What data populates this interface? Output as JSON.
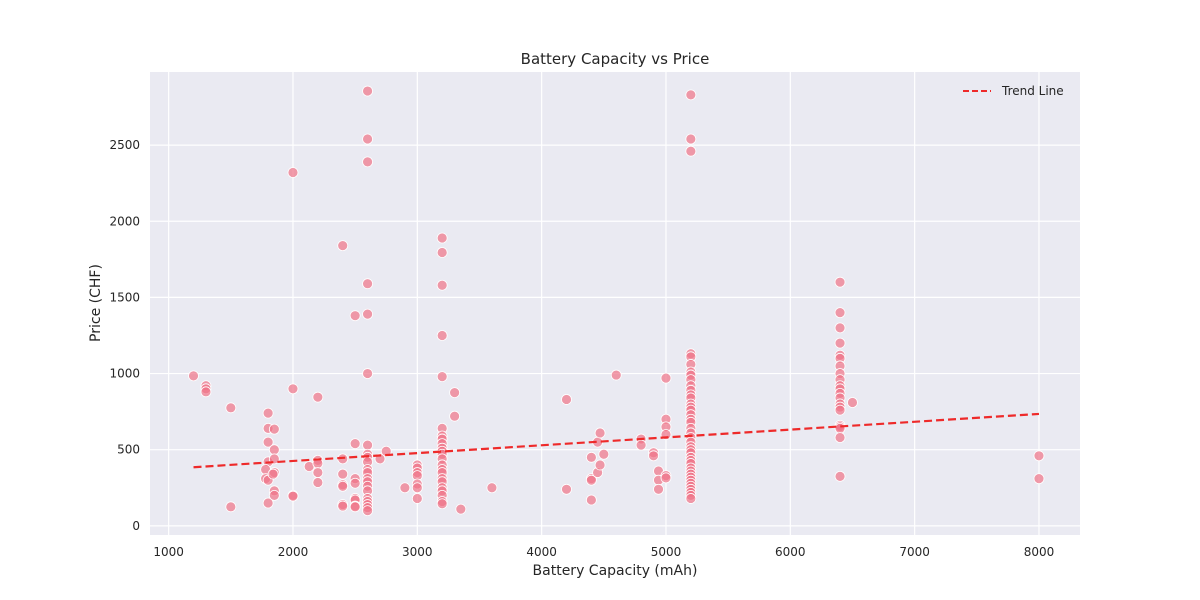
{
  "chart_data": {
    "type": "scatter",
    "title": "Battery Capacity vs Price",
    "xlabel": "Battery Capacity (mAh)",
    "ylabel": "Price (CHF)",
    "xlim": [
      850,
      8330
    ],
    "ylim": [
      -60,
      2980
    ],
    "xticks": [
      1000,
      2000,
      3000,
      4000,
      5000,
      6000,
      7000,
      8000
    ],
    "yticks": [
      0,
      500,
      1000,
      1500,
      2000,
      2500
    ],
    "grid": true,
    "legend": {
      "position": "top-right",
      "entries": [
        "Trend Line"
      ]
    },
    "colors": {
      "background": "#eaeaf2",
      "grid": "#ffffff",
      "points": "#f07487",
      "point_edge": "#ffffff",
      "trend": "#ee2a2a"
    },
    "series": [
      {
        "type": "scatter",
        "points": [
          [
            1200,
            985
          ],
          [
            1300,
            920
          ],
          [
            1300,
            900
          ],
          [
            1300,
            880
          ],
          [
            1500,
            775
          ],
          [
            1500,
            125
          ],
          [
            1800,
            740
          ],
          [
            1800,
            640
          ],
          [
            1800,
            550
          ],
          [
            1800,
            420
          ],
          [
            1780,
            370
          ],
          [
            1780,
            310
          ],
          [
            1800,
            300
          ],
          [
            1800,
            150
          ],
          [
            1850,
            635
          ],
          [
            1850,
            500
          ],
          [
            1850,
            440
          ],
          [
            1850,
            350
          ],
          [
            1840,
            340
          ],
          [
            1850,
            230
          ],
          [
            1850,
            200
          ],
          [
            2000,
            2320
          ],
          [
            2000,
            900
          ],
          [
            2000,
            200
          ],
          [
            2000,
            195
          ],
          [
            2130,
            390
          ],
          [
            2200,
            845
          ],
          [
            2200,
            430
          ],
          [
            2200,
            410
          ],
          [
            2200,
            350
          ],
          [
            2200,
            285
          ],
          [
            2400,
            1840
          ],
          [
            2400,
            440
          ],
          [
            2400,
            340
          ],
          [
            2400,
            270
          ],
          [
            2400,
            260
          ],
          [
            2400,
            140
          ],
          [
            2400,
            130
          ],
          [
            2500,
            1380
          ],
          [
            2500,
            540
          ],
          [
            2500,
            310
          ],
          [
            2500,
            280
          ],
          [
            2500,
            180
          ],
          [
            2500,
            170
          ],
          [
            2500,
            130
          ],
          [
            2500,
            125
          ],
          [
            2600,
            2855
          ],
          [
            2600,
            2540
          ],
          [
            2600,
            2390
          ],
          [
            2600,
            1590
          ],
          [
            2600,
            1390
          ],
          [
            2600,
            1000
          ],
          [
            2600,
            530
          ],
          [
            2600,
            470
          ],
          [
            2600,
            450
          ],
          [
            2600,
            420
          ],
          [
            2600,
            370
          ],
          [
            2600,
            350
          ],
          [
            2600,
            310
          ],
          [
            2600,
            290
          ],
          [
            2600,
            260
          ],
          [
            2600,
            230
          ],
          [
            2600,
            180
          ],
          [
            2600,
            160
          ],
          [
            2600,
            140
          ],
          [
            2600,
            120
          ],
          [
            2600,
            100
          ],
          [
            2700,
            440
          ],
          [
            2750,
            490
          ],
          [
            2900,
            250
          ],
          [
            3000,
            400
          ],
          [
            3000,
            380
          ],
          [
            3000,
            350
          ],
          [
            3000,
            330
          ],
          [
            3000,
            275
          ],
          [
            3000,
            250
          ],
          [
            3000,
            180
          ],
          [
            3200,
            1890
          ],
          [
            3200,
            1795
          ],
          [
            3200,
            1580
          ],
          [
            3200,
            1250
          ],
          [
            3200,
            980
          ],
          [
            3200,
            640
          ],
          [
            3200,
            590
          ],
          [
            3200,
            570
          ],
          [
            3200,
            540
          ],
          [
            3200,
            510
          ],
          [
            3200,
            490
          ],
          [
            3200,
            470
          ],
          [
            3200,
            440
          ],
          [
            3200,
            400
          ],
          [
            3200,
            370
          ],
          [
            3200,
            350
          ],
          [
            3200,
            310
          ],
          [
            3200,
            290
          ],
          [
            3200,
            250
          ],
          [
            3200,
            230
          ],
          [
            3200,
            200
          ],
          [
            3200,
            160
          ],
          [
            3200,
            145
          ],
          [
            3300,
            875
          ],
          [
            3300,
            720
          ],
          [
            3350,
            110
          ],
          [
            3600,
            250
          ],
          [
            4200,
            830
          ],
          [
            4200,
            240
          ],
          [
            4400,
            450
          ],
          [
            4400,
            310
          ],
          [
            4400,
            300
          ],
          [
            4400,
            170
          ],
          [
            4450,
            550
          ],
          [
            4450,
            350
          ],
          [
            4470,
            610
          ],
          [
            4470,
            400
          ],
          [
            4500,
            470
          ],
          [
            4600,
            990
          ],
          [
            4800,
            570
          ],
          [
            4800,
            530
          ],
          [
            4900,
            480
          ],
          [
            4900,
            460
          ],
          [
            4940,
            360
          ],
          [
            4940,
            300
          ],
          [
            4940,
            240
          ],
          [
            5000,
            970
          ],
          [
            5000,
            700
          ],
          [
            5000,
            650
          ],
          [
            5000,
            600
          ],
          [
            5000,
            330
          ],
          [
            5000,
            315
          ],
          [
            5200,
            2830
          ],
          [
            5200,
            2540
          ],
          [
            5200,
            2460
          ],
          [
            5200,
            1130
          ],
          [
            5200,
            1110
          ],
          [
            5200,
            1060
          ],
          [
            5200,
            1010
          ],
          [
            5200,
            990
          ],
          [
            5200,
            960
          ],
          [
            5200,
            920
          ],
          [
            5200,
            890
          ],
          [
            5200,
            860
          ],
          [
            5200,
            840
          ],
          [
            5200,
            800
          ],
          [
            5200,
            780
          ],
          [
            5200,
            760
          ],
          [
            5200,
            730
          ],
          [
            5200,
            700
          ],
          [
            5200,
            680
          ],
          [
            5200,
            640
          ],
          [
            5200,
            610
          ],
          [
            5200,
            580
          ],
          [
            5200,
            550
          ],
          [
            5200,
            520
          ],
          [
            5200,
            500
          ],
          [
            5200,
            480
          ],
          [
            5200,
            450
          ],
          [
            5200,
            430
          ],
          [
            5200,
            410
          ],
          [
            5200,
            380
          ],
          [
            5200,
            360
          ],
          [
            5200,
            340
          ],
          [
            5200,
            320
          ],
          [
            5200,
            300
          ],
          [
            5200,
            280
          ],
          [
            5200,
            260
          ],
          [
            5200,
            240
          ],
          [
            5200,
            220
          ],
          [
            5200,
            200
          ],
          [
            5200,
            180
          ],
          [
            6400,
            1600
          ],
          [
            6400,
            1400
          ],
          [
            6400,
            1300
          ],
          [
            6400,
            1200
          ],
          [
            6400,
            1120
          ],
          [
            6400,
            1100
          ],
          [
            6400,
            1050
          ],
          [
            6400,
            1000
          ],
          [
            6400,
            960
          ],
          [
            6400,
            920
          ],
          [
            6400,
            900
          ],
          [
            6400,
            870
          ],
          [
            6400,
            840
          ],
          [
            6400,
            800
          ],
          [
            6400,
            780
          ],
          [
            6400,
            760
          ],
          [
            6400,
            660
          ],
          [
            6400,
            650
          ],
          [
            6400,
            640
          ],
          [
            6400,
            580
          ],
          [
            6400,
            325
          ],
          [
            6500,
            810
          ],
          [
            8000,
            460
          ],
          [
            8000,
            310
          ]
        ]
      },
      {
        "name": "Trend Line",
        "type": "line",
        "style": "dashed",
        "x": [
          1200,
          8000
        ],
        "y": [
          385,
          735
        ]
      }
    ]
  }
}
